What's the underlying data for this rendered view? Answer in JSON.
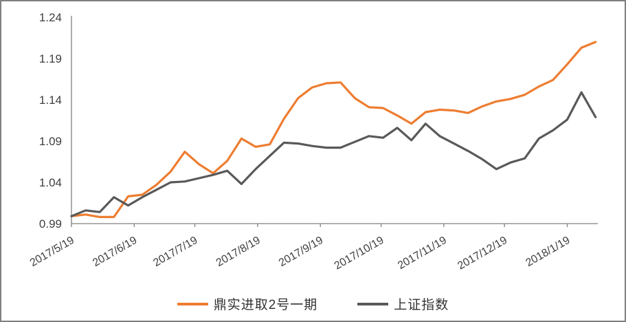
{
  "chart_data": {
    "type": "line",
    "title": "",
    "x_tick_labels": [
      "2017/5/19",
      "2017/6/19",
      "2017/7/19",
      "2017/8/19",
      "2017/9/19",
      "2017/10/19",
      "2017/11/19",
      "2017/12/19",
      "2018/1/19"
    ],
    "x_tick_positions_weeks": [
      0,
      4.43,
      8.71,
      13.14,
      17.57,
      21.86,
      26.29,
      30.57,
      35.0
    ],
    "y_ticks": [
      0.99,
      1.04,
      1.09,
      1.14,
      1.19,
      1.24
    ],
    "ylim": [
      0.99,
      1.24
    ],
    "grid": false,
    "legend_position": "bottom",
    "series": [
      {
        "name": "鼎实进取2号一期",
        "color": "#ED7D31",
        "values": [
          0.999,
          1.001,
          0.998,
          0.998,
          1.023,
          1.025,
          1.037,
          1.053,
          1.077,
          1.062,
          1.051,
          1.066,
          1.093,
          1.083,
          1.086,
          1.117,
          1.142,
          1.155,
          1.16,
          1.161,
          1.142,
          1.131,
          1.13,
          1.121,
          1.111,
          1.125,
          1.128,
          1.127,
          1.124,
          1.132,
          1.138,
          1.141,
          1.146,
          1.156,
          1.164,
          1.183,
          1.203,
          1.21
        ]
      },
      {
        "name": "上证指数",
        "color": "#595959",
        "values": [
          0.999,
          1.006,
          1.004,
          1.022,
          1.012,
          1.022,
          1.031,
          1.04,
          1.041,
          1.045,
          1.049,
          1.054,
          1.038,
          1.056,
          1.072,
          1.088,
          1.087,
          1.084,
          1.082,
          1.082,
          1.089,
          1.096,
          1.094,
          1.106,
          1.091,
          1.111,
          1.096,
          1.087,
          1.078,
          1.068,
          1.056,
          1.064,
          1.069,
          1.093,
          1.103,
          1.116,
          1.149,
          1.119
        ]
      }
    ]
  },
  "colors": {
    "axis": "#808080",
    "tick_label": "#404040",
    "border": "#7F7F7F",
    "background": "#FFFFFF"
  }
}
